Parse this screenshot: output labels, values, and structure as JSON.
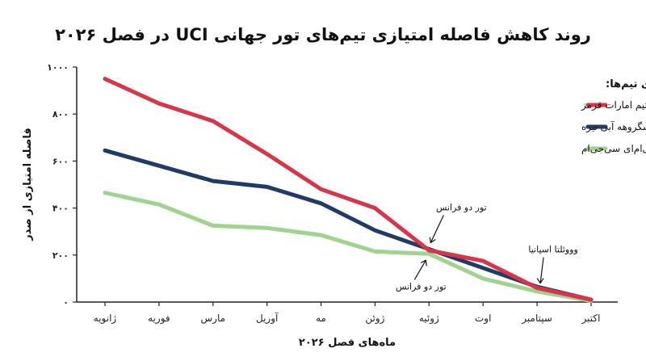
{
  "chart_data": {
    "type": "line",
    "title": "روند کاهش فاصله امتیازی تیم‌های تور جهانی UCI در فصل ۲۰۲۶",
    "xlabel": "ماه‌های فصل ۲۰۲۶",
    "ylabel": "فاصله امتیازی از صدر",
    "categories": [
      "ژانویه",
      "فوریه",
      "مارس",
      "آوریل",
      "مه",
      "ژوئن",
      "ژوئیه",
      "اوت",
      "سپتامبر",
      "اکتبر"
    ],
    "ylim": [
      0,
      1000
    ],
    "yticks": [
      0,
      200,
      400,
      600,
      800,
      1000
    ],
    "ytick_labels": [
      "۰",
      "۲۰۰",
      "۴۰۰",
      "۶۰۰",
      "۸۰۰",
      "۱۰۰۰"
    ],
    "legend_title": "راهنمای تیم‌ها:",
    "legend_position": "top-right",
    "grid": false,
    "series": [
      {
        "name": "تیم امارات قرمز",
        "color": "#d7354a",
        "values": [
          950,
          845,
          770,
          630,
          480,
          400,
          220,
          175,
          60,
          10
        ]
      },
      {
        "name": "ردبول-بورا-هانسگروهه آبی تیره",
        "color": "#1f3b66",
        "values": [
          645,
          580,
          515,
          490,
          420,
          305,
          225,
          145,
          65,
          10
        ]
      },
      {
        "name": "دکاتلون سی‌ام‌ای سی‌جی‌ام",
        "color": "#9fd38f",
        "values": [
          465,
          415,
          325,
          315,
          285,
          215,
          205,
          100,
          45,
          5
        ]
      }
    ],
    "annotations": [
      {
        "text": "تور دو فرانس",
        "x_index": 6,
        "y": 225
      },
      {
        "text": "تور دو فرانس",
        "x_index": 6,
        "y": 205
      },
      {
        "text": "وووئلتا اسپانیا",
        "x_index": 8,
        "y": 60
      }
    ]
  }
}
